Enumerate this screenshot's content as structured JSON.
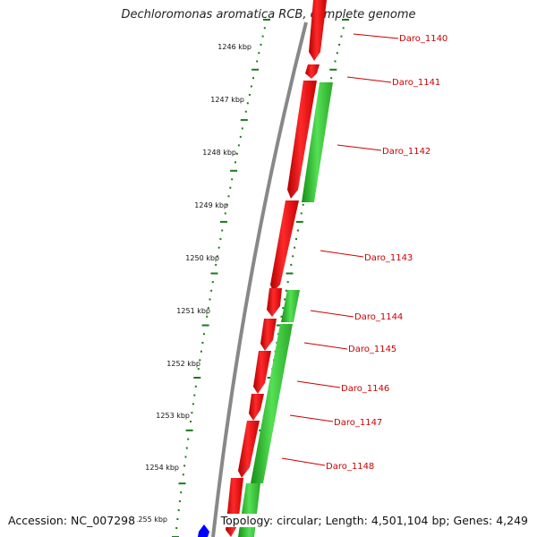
{
  "title": "Dechloromonas aromatica RCB, complete genome",
  "accession": "Accession: NC_007298",
  "summary": "Topology: circular; Length: 4,501,104 bp; Genes: 4,249",
  "colors": {
    "forward": "#ff0000",
    "reverse": "#22cc22",
    "backbone": "#888888",
    "tick": "#1a7a1a",
    "label": "#cc0000",
    "marker": "#0000ff"
  },
  "kbp_labels": [
    "1246 kbp",
    "1247 kbp",
    "1248 kbp",
    "1249 kbp",
    "1250 kbp",
    "1251 kbp",
    "1252 kbp",
    "1253 kbp",
    "1254 kbp",
    "1255 kbp"
  ],
  "gene_labels": [
    "Daro_1140",
    "Daro_1141",
    "Daro_1142",
    "Daro_1143",
    "Daro_1144",
    "Daro_1145",
    "Daro_1146",
    "Daro_1147",
    "Daro_1148"
  ]
}
